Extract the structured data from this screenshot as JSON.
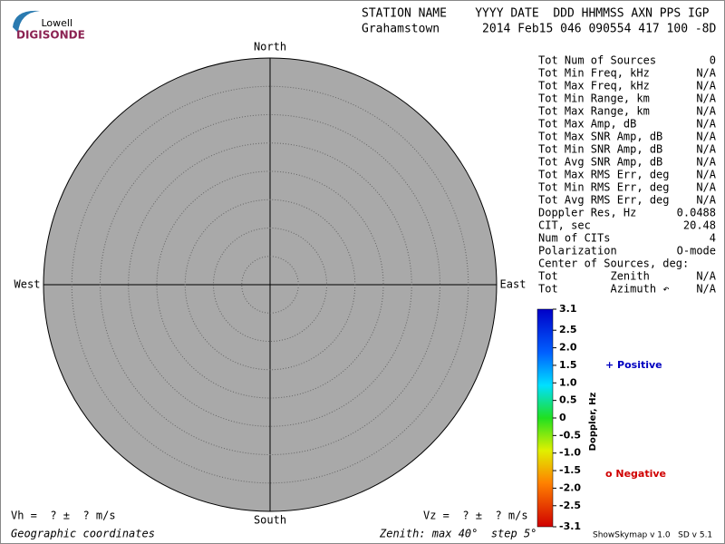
{
  "logo": {
    "top": "Lowell",
    "bottom": "DIGISONDE"
  },
  "header": {
    "line1": "STATION NAME    YYYY DATE  DDD HHMMSS AXN PPS IGP",
    "line2": "Grahamstown      2014 Feb15 046 090554 417 100 -8D"
  },
  "compass": {
    "north": "North",
    "south": "South",
    "west": "West",
    "east": "East"
  },
  "stats": [
    {
      "label": "Tot Num of Sources",
      "value": "0",
      "muted": true
    },
    {
      "label": "Tot Min Freq, kHz",
      "value": "N/A",
      "muted": true
    },
    {
      "label": "Tot Max Freq, kHz",
      "value": "N/A",
      "muted": true
    },
    {
      "label": "Tot Min Range, km",
      "value": "N/A",
      "muted": true
    },
    {
      "label": "Tot Max Range, km",
      "value": "N/A",
      "muted": true
    },
    {
      "label": "Tot Max Amp, dB",
      "value": "N/A",
      "muted": true
    },
    {
      "label": "Tot Max SNR Amp, dB",
      "value": "N/A",
      "muted": true
    },
    {
      "label": "Tot Min SNR Amp, dB",
      "value": "N/A",
      "muted": true
    },
    {
      "label": "Tot Avg SNR Amp, dB",
      "value": "N/A",
      "muted": true
    },
    {
      "label": "Tot Max RMS Err, deg",
      "value": "N/A",
      "muted": true
    },
    {
      "label": "Tot Min RMS Err, deg",
      "value": "N/A",
      "muted": true
    },
    {
      "label": "Tot Avg RMS Err, deg",
      "value": "N/A",
      "muted": true
    },
    {
      "label": "Doppler Res, Hz",
      "value": "0.0488",
      "muted": false
    },
    {
      "label": "CIT, sec",
      "value": "20.48",
      "muted": false
    },
    {
      "label": "Num of CITs",
      "value": "4",
      "muted": false
    },
    {
      "label": "Polarization",
      "value": "O-mode",
      "muted": false
    },
    {
      "label": "Center of Sources, deg:",
      "value": null,
      "muted": false
    },
    {
      "label": "Tot        Zenith",
      "value": "N/A",
      "muted": true
    },
    {
      "label": "Tot        Azimuth ↶",
      "value": "N/A",
      "muted": true
    }
  ],
  "colorbar": {
    "label": "Doppler, Hz",
    "lim": [
      -3.1,
      3.1
    ],
    "ticks": [
      3.1,
      2.5,
      {
        "value": 2,
        "label": "2.0"
      },
      1.5,
      {
        "value": 1,
        "label": "1.0"
      },
      0.5,
      0,
      -0.5,
      {
        "value": -1,
        "label": "-1.0"
      },
      -1.5,
      {
        "value": -2,
        "label": "-2.0"
      },
      -2.5,
      -3.1
    ]
  },
  "legend": {
    "positive": "+ Positive",
    "negative": "o Negative"
  },
  "footer": {
    "vh": "V<sub>h</sub> =  ? ±  ? m/s",
    "vh_text": "Vh =  ? ±  ? m/s",
    "vz_text": "Vz =  ? ±  ? m/s",
    "coords": "Geographic coordinates",
    "zenith": "Zenith: max 40°  step 5°",
    "version": "ShowSkymap v 1.0   SD v 5.1"
  }
}
